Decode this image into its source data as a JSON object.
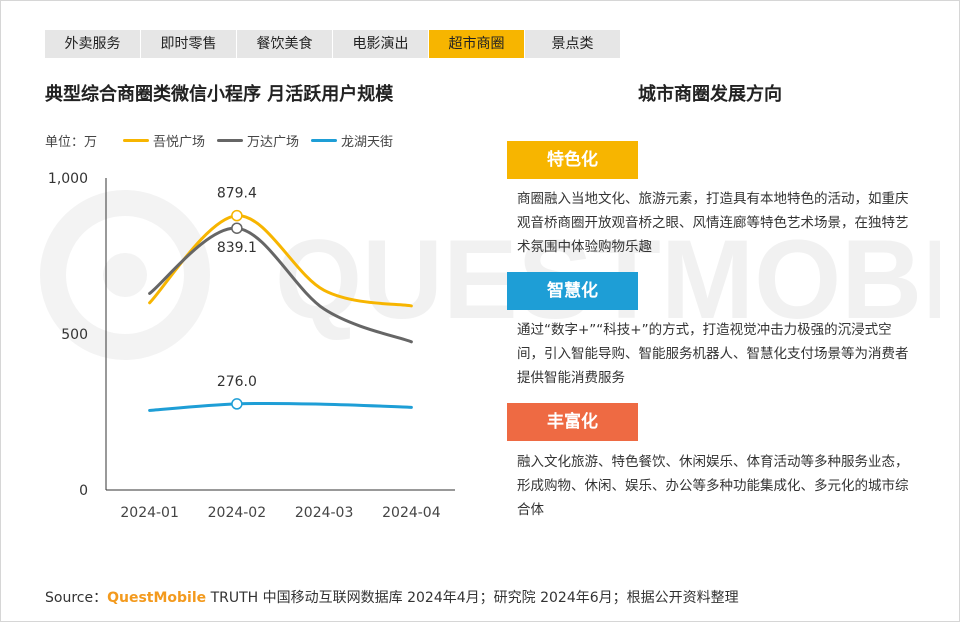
{
  "tabs": [
    {
      "label": "外卖服务",
      "active": false
    },
    {
      "label": "即时零售",
      "active": false
    },
    {
      "label": "餐饮美食",
      "active": false
    },
    {
      "label": "电影演出",
      "active": false
    },
    {
      "label": "超市商圈",
      "active": true
    },
    {
      "label": "景点类",
      "active": false
    }
  ],
  "chart_title": "典型综合商圈类微信小程序 月活跃用户规模",
  "unit_label": "单位：万",
  "chart_data": {
    "type": "line",
    "categories": [
      "2024-01",
      "2024-02",
      "2024-03",
      "2024-04"
    ],
    "series": [
      {
        "name": "吾悦广场",
        "color": "#f7b500",
        "values": [
          600,
          879.4,
          640,
          590
        ]
      },
      {
        "name": "万达广场",
        "color": "#666666",
        "values": [
          630,
          839.1,
          580,
          475
        ]
      },
      {
        "name": "龙湖天街",
        "color": "#1e9ed6",
        "values": [
          255,
          276.0,
          275,
          265
        ]
      }
    ],
    "data_labels": [
      {
        "series": 0,
        "index": 1,
        "text": "879.4"
      },
      {
        "series": 1,
        "index": 1,
        "text": "839.1"
      },
      {
        "series": 2,
        "index": 1,
        "text": "276.0"
      }
    ],
    "y_ticks": [
      "0",
      "500",
      "1,000"
    ],
    "y_tick_values": [
      0,
      500,
      1000
    ],
    "ylim": [
      0,
      1000
    ],
    "grid": false,
    "legend_position": "top"
  },
  "right_title": "城市商圈发展方向",
  "directions": [
    {
      "label": "特色化",
      "color": "#f7b500",
      "desc": "商圈融入当地文化、旅游元素，打造具有本地特色的活动，如重庆观音桥商圈开放观音桥之眼、风情连廊等特色艺术场景，在独特艺术氛围中体验购物乐趣"
    },
    {
      "label": "智慧化",
      "color": "#1e9ed6",
      "desc": "通过“数字+”“科技+”的方式，打造视觉冲击力极强的沉浸式空间，引入智能导购、智能服务机器人、智慧化支付场景等为消费者提供智能消费服务"
    },
    {
      "label": "丰富化",
      "color": "#ee6a43",
      "desc": "融入文化旅游、特色餐饮、休闲娱乐、体育活动等多种服务业态，形成购物、休闲、娱乐、办公等多种功能集成化、多元化的城市综合体"
    }
  ],
  "watermark": "QUESTMOBILE",
  "source": {
    "prefix": "Source：",
    "brand": "QuestMobile",
    "rest": " TRUTH 中国移动互联网数据库 2024年4月；研究院 2024年6月；根据公开资料整理"
  }
}
